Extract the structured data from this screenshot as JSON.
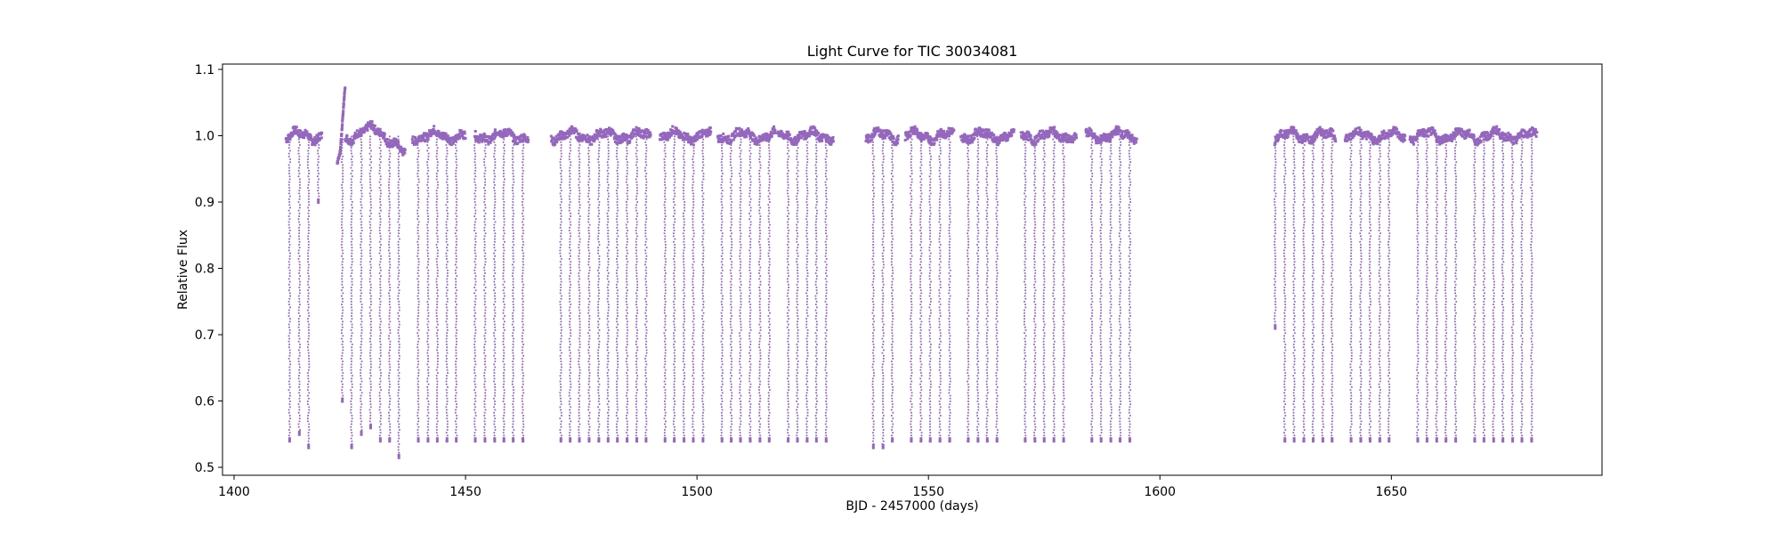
{
  "chart_data": {
    "type": "scatter",
    "title": "Light Curve for TIC 30034081",
    "xlabel": "BJD - 2457000 (days)",
    "ylabel": "Relative Flux",
    "xlim": [
      1397.5,
      1695.5
    ],
    "ylim": [
      0.488,
      1.108
    ],
    "xticks": [
      1400,
      1450,
      1500,
      1550,
      1600,
      1650
    ],
    "yticks": [
      0.5,
      0.6,
      0.7,
      0.8,
      0.9,
      1.0,
      1.1
    ],
    "xtick_labels": [
      "1400",
      "1450",
      "1500",
      "1550",
      "1600",
      "1650"
    ],
    "ytick_labels": [
      "0.5",
      "0.6",
      "0.7",
      "0.8",
      "0.9",
      "1.0",
      "1.1"
    ],
    "grid": false,
    "marker_color": "#9467bd",
    "series": [
      {
        "baseline_segments": [
          [
            1411.2,
            1419.0
          ],
          [
            1424.0,
            1437.0
          ],
          [
            1438.5,
            1450.0
          ],
          [
            1452.0,
            1463.6
          ],
          [
            1468.5,
            1490.0
          ],
          [
            1492.0,
            1503.0
          ],
          [
            1504.5,
            1517.0
          ],
          [
            1517.5,
            1529.5
          ],
          [
            1536.5,
            1543.5
          ],
          [
            1545.0,
            1555.5
          ],
          [
            1557.0,
            1568.5
          ],
          [
            1570.0,
            1582.0
          ],
          [
            1584.0,
            1595.0
          ],
          [
            1624.8,
            1638.0
          ],
          [
            1640.0,
            1653.0
          ],
          [
            1654.0,
            1681.5
          ]
        ],
        "flare": [
          [
            1422.3,
            0.96
          ],
          [
            1422.8,
            0.97
          ],
          [
            1423.1,
            0.99
          ],
          [
            1423.4,
            1.02
          ],
          [
            1423.7,
            1.05
          ],
          [
            1424.0,
            1.075
          ]
        ],
        "dips": [
          [
            1412.0,
            0.54
          ],
          [
            1414.1,
            0.55
          ],
          [
            1416.1,
            0.53
          ],
          [
            1418.2,
            0.9
          ],
          [
            1423.4,
            0.6
          ],
          [
            1425.4,
            0.53
          ],
          [
            1427.5,
            0.55
          ],
          [
            1429.5,
            0.56
          ],
          [
            1431.6,
            0.54
          ],
          [
            1433.6,
            0.54
          ],
          [
            1435.6,
            0.515
          ],
          [
            1439.8,
            0.54
          ],
          [
            1441.9,
            0.54
          ],
          [
            1443.9,
            0.54
          ],
          [
            1446.0,
            0.54
          ],
          [
            1448.0,
            0.54
          ],
          [
            1452.1,
            0.54
          ],
          [
            1454.2,
            0.54
          ],
          [
            1456.3,
            0.54
          ],
          [
            1458.3,
            0.54
          ],
          [
            1460.3,
            0.54
          ],
          [
            1462.4,
            0.54
          ],
          [
            1470.6,
            0.54
          ],
          [
            1472.6,
            0.54
          ],
          [
            1474.6,
            0.54
          ],
          [
            1476.7,
            0.54
          ],
          [
            1478.8,
            0.54
          ],
          [
            1480.8,
            0.54
          ],
          [
            1482.8,
            0.54
          ],
          [
            1484.9,
            0.54
          ],
          [
            1487.0,
            0.54
          ],
          [
            1489.0,
            0.54
          ],
          [
            1493.1,
            0.54
          ],
          [
            1495.1,
            0.54
          ],
          [
            1497.2,
            0.54
          ],
          [
            1499.2,
            0.54
          ],
          [
            1501.3,
            0.54
          ],
          [
            1505.4,
            0.54
          ],
          [
            1507.4,
            0.54
          ],
          [
            1509.4,
            0.54
          ],
          [
            1511.5,
            0.54
          ],
          [
            1513.6,
            0.54
          ],
          [
            1515.6,
            0.54
          ],
          [
            1519.7,
            0.54
          ],
          [
            1521.7,
            0.54
          ],
          [
            1523.8,
            0.54
          ],
          [
            1525.8,
            0.54
          ],
          [
            1527.9,
            0.54
          ],
          [
            1538.1,
            0.53
          ],
          [
            1540.2,
            0.53
          ],
          [
            1542.2,
            0.54
          ],
          [
            1546.3,
            0.54
          ],
          [
            1548.4,
            0.54
          ],
          [
            1550.4,
            0.54
          ],
          [
            1552.5,
            0.54
          ],
          [
            1554.6,
            0.54
          ],
          [
            1558.6,
            0.54
          ],
          [
            1560.7,
            0.54
          ],
          [
            1562.7,
            0.54
          ],
          [
            1564.8,
            0.54
          ],
          [
            1570.9,
            0.54
          ],
          [
            1573.0,
            0.54
          ],
          [
            1575.0,
            0.54
          ],
          [
            1577.1,
            0.54
          ],
          [
            1579.2,
            0.54
          ],
          [
            1585.3,
            0.54
          ],
          [
            1587.3,
            0.54
          ],
          [
            1589.4,
            0.54
          ],
          [
            1591.4,
            0.54
          ],
          [
            1593.5,
            0.54
          ],
          [
            1624.9,
            0.71
          ],
          [
            1627.0,
            0.54
          ],
          [
            1629.0,
            0.54
          ],
          [
            1631.1,
            0.54
          ],
          [
            1633.1,
            0.54
          ],
          [
            1635.2,
            0.54
          ],
          [
            1637.2,
            0.54
          ],
          [
            1641.3,
            0.54
          ],
          [
            1643.4,
            0.54
          ],
          [
            1645.4,
            0.54
          ],
          [
            1647.5,
            0.54
          ],
          [
            1649.5,
            0.54
          ],
          [
            1655.7,
            0.54
          ],
          [
            1657.7,
            0.54
          ],
          [
            1659.8,
            0.54
          ],
          [
            1661.8,
            0.54
          ],
          [
            1663.9,
            0.54
          ],
          [
            1668.0,
            0.54
          ],
          [
            1670.0,
            0.54
          ],
          [
            1672.1,
            0.54
          ],
          [
            1674.1,
            0.54
          ],
          [
            1676.2,
            0.54
          ],
          [
            1678.2,
            0.54
          ],
          [
            1680.3,
            0.54
          ]
        ]
      }
    ]
  }
}
